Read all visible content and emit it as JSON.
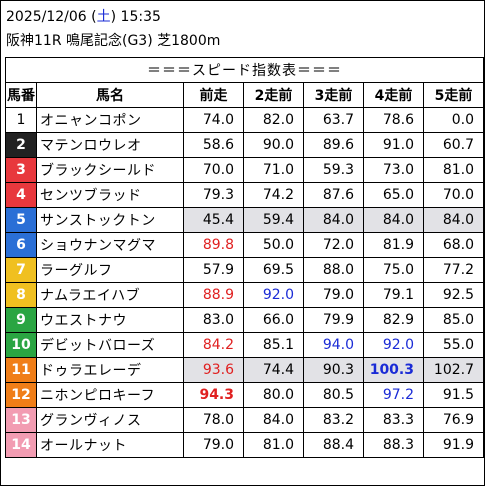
{
  "header": {
    "date": "2025/12/06",
    "dow": "土",
    "time": "15:35",
    "race": "阪神11R 鳴尾記念(G3) 芝1800m"
  },
  "table": {
    "title": "＝＝＝スピード指数表＝＝＝",
    "columns": [
      "馬番",
      "馬名",
      "前走",
      "2走前",
      "3走前",
      "4走前",
      "5走前"
    ],
    "frame_colors": {
      "1": "#ffffff",
      "2": "#222222",
      "3": "#e8383d",
      "4": "#2a6fd6",
      "5": "#f0c020",
      "6": "#2aa542",
      "7": "#f07e18",
      "8": "#f29cb2"
    },
    "rows": [
      {
        "no": "1",
        "name": "オニャンコポン",
        "frame": 1,
        "vals": [
          "74.0",
          "82.0",
          "63.7",
          "78.6",
          "0.0"
        ],
        "styles": [
          "",
          "",
          "",
          "",
          ""
        ],
        "hl": false
      },
      {
        "no": "2",
        "name": "マテンロウレオ",
        "frame": 2,
        "vals": [
          "58.6",
          "90.0",
          "89.6",
          "91.0",
          "60.7"
        ],
        "styles": [
          "",
          "",
          "",
          "",
          ""
        ],
        "hl": false
      },
      {
        "no": "3",
        "name": "ブラックシールド",
        "frame": 3,
        "vals": [
          "70.0",
          "71.0",
          "59.3",
          "73.0",
          "81.0"
        ],
        "styles": [
          "",
          "",
          "",
          "",
          ""
        ],
        "hl": false
      },
      {
        "no": "4",
        "name": "センツブラッド",
        "frame": 3,
        "vals": [
          "79.3",
          "74.2",
          "87.6",
          "65.0",
          "70.0"
        ],
        "styles": [
          "",
          "",
          "",
          "",
          ""
        ],
        "hl": false
      },
      {
        "no": "5",
        "name": "サンストックトン",
        "frame": 4,
        "vals": [
          "45.4",
          "59.4",
          "84.0",
          "84.0",
          "84.0"
        ],
        "styles": [
          "",
          "",
          "",
          "",
          ""
        ],
        "hl": true
      },
      {
        "no": "6",
        "name": "ショウナンマグマ",
        "frame": 4,
        "vals": [
          "89.8",
          "50.0",
          "72.0",
          "81.9",
          "68.0"
        ],
        "styles": [
          "red",
          "",
          "",
          "",
          ""
        ],
        "hl": false
      },
      {
        "no": "7",
        "name": "ラーグルフ",
        "frame": 5,
        "vals": [
          "57.9",
          "69.5",
          "88.0",
          "75.0",
          "77.2"
        ],
        "styles": [
          "",
          "",
          "",
          "",
          ""
        ],
        "hl": false
      },
      {
        "no": "8",
        "name": "ナムラエイハブ",
        "frame": 5,
        "vals": [
          "88.9",
          "92.0",
          "79.0",
          "79.1",
          "92.5"
        ],
        "styles": [
          "red",
          "blue",
          "",
          "",
          ""
        ],
        "hl": false
      },
      {
        "no": "9",
        "name": "ウエストナウ",
        "frame": 6,
        "vals": [
          "83.0",
          "66.0",
          "79.9",
          "82.9",
          "85.0"
        ],
        "styles": [
          "",
          "",
          "",
          "",
          ""
        ],
        "hl": false
      },
      {
        "no": "10",
        "name": "デビットバローズ",
        "frame": 6,
        "vals": [
          "84.2",
          "85.1",
          "94.0",
          "92.0",
          "55.0"
        ],
        "styles": [
          "red",
          "",
          "blue",
          "blue",
          ""
        ],
        "hl": false
      },
      {
        "no": "11",
        "name": "ドゥラエレーデ",
        "frame": 7,
        "vals": [
          "93.6",
          "74.4",
          "90.3",
          "100.3",
          "102.7"
        ],
        "styles": [
          "red",
          "",
          "",
          "bold blue",
          ""
        ],
        "hl": true
      },
      {
        "no": "12",
        "name": "ニホンピロキーフ",
        "frame": 7,
        "vals": [
          "94.3",
          "80.0",
          "80.5",
          "97.2",
          "91.5"
        ],
        "styles": [
          "bold red",
          "",
          "",
          "blue",
          ""
        ],
        "hl": false
      },
      {
        "no": "13",
        "name": "グランヴィノス",
        "frame": 8,
        "vals": [
          "78.0",
          "84.0",
          "83.2",
          "83.3",
          "76.9"
        ],
        "styles": [
          "",
          "",
          "",
          "",
          ""
        ],
        "hl": false
      },
      {
        "no": "14",
        "name": "オールナット",
        "frame": 8,
        "vals": [
          "79.0",
          "81.0",
          "88.4",
          "88.3",
          "91.9"
        ],
        "styles": [
          "",
          "",
          "",
          "",
          ""
        ],
        "hl": false
      }
    ]
  }
}
